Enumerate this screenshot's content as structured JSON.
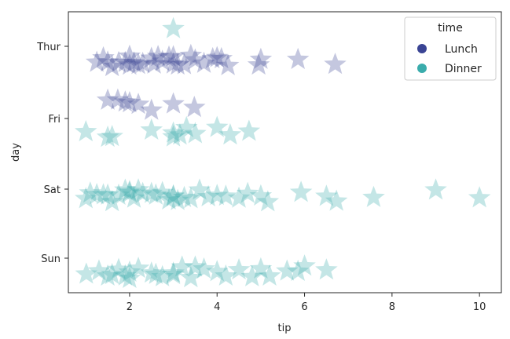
{
  "chart_data": {
    "type": "scatter",
    "xlabel": "tip",
    "ylabel": "day",
    "xlim": [
      0.6,
      10.5
    ],
    "x_ticks": [
      2,
      4,
      6,
      8,
      10
    ],
    "categories": [
      "Thur",
      "Fri",
      "Sat",
      "Sun"
    ],
    "marker": "star",
    "legend": {
      "title": "time",
      "position": "top-right",
      "entries": [
        "Lunch",
        "Dinner"
      ]
    },
    "colors": {
      "Lunch": "#3a4494",
      "Dinner": "#3aacac"
    },
    "series": [
      {
        "name": "Lunch",
        "points": [
          {
            "day": "Thur",
            "x": 1.25,
            "j": 0.2
          },
          {
            "day": "Thur",
            "x": 1.4,
            "j": 0.2
          },
          {
            "day": "Thur",
            "x": 1.5,
            "j": 0.2
          },
          {
            "day": "Thur",
            "x": 1.6,
            "j": 0.2
          },
          {
            "day": "Thur",
            "x": 1.75,
            "j": 0.2
          },
          {
            "day": "Thur",
            "x": 1.9,
            "j": 0.2
          },
          {
            "day": "Thur",
            "x": 2.0,
            "j": 0.2
          },
          {
            "day": "Thur",
            "x": 2.0,
            "j": 0.2
          },
          {
            "day": "Thur",
            "x": 2.1,
            "j": 0.2
          },
          {
            "day": "Thur",
            "x": 2.2,
            "j": 0.2
          },
          {
            "day": "Thur",
            "x": 2.3,
            "j": 0.2
          },
          {
            "day": "Thur",
            "x": 2.5,
            "j": 0.2
          },
          {
            "day": "Thur",
            "x": 2.56,
            "j": 0.2
          },
          {
            "day": "Thur",
            "x": 2.65,
            "j": 0.2
          },
          {
            "day": "Thur",
            "x": 2.75,
            "j": 0.2
          },
          {
            "day": "Thur",
            "x": 2.9,
            "j": 0.2
          },
          {
            "day": "Thur",
            "x": 3.0,
            "j": 0.2
          },
          {
            "day": "Thur",
            "x": 3.0,
            "j": 0.2
          },
          {
            "day": "Thur",
            "x": 3.1,
            "j": 0.2
          },
          {
            "day": "Thur",
            "x": 3.25,
            "j": 0.2
          },
          {
            "day": "Thur",
            "x": 3.4,
            "j": 0.2
          },
          {
            "day": "Thur",
            "x": 3.5,
            "j": 0.2
          },
          {
            "day": "Thur",
            "x": 3.7,
            "j": 0.2
          },
          {
            "day": "Thur",
            "x": 3.9,
            "j": 0.2
          },
          {
            "day": "Thur",
            "x": 4.0,
            "j": 0.2
          },
          {
            "day": "Thur",
            "x": 4.1,
            "j": 0.2
          },
          {
            "day": "Thur",
            "x": 4.25,
            "j": 0.2
          },
          {
            "day": "Thur",
            "x": 4.95,
            "j": 0.2
          },
          {
            "day": "Thur",
            "x": 5.0,
            "j": 0.2
          },
          {
            "day": "Thur",
            "x": 5.85,
            "j": 0.2
          },
          {
            "day": "Thur",
            "x": 6.7,
            "j": 0.2
          },
          {
            "day": "Fri",
            "x": 1.5,
            "j": -0.2
          },
          {
            "day": "Fri",
            "x": 1.73,
            "j": -0.2
          },
          {
            "day": "Fri",
            "x": 1.9,
            "j": -0.2
          },
          {
            "day": "Fri",
            "x": 2.0,
            "j": -0.2
          },
          {
            "day": "Fri",
            "x": 2.2,
            "j": -0.2
          },
          {
            "day": "Fri",
            "x": 2.5,
            "j": -0.2
          },
          {
            "day": "Fri",
            "x": 3.0,
            "j": -0.2
          },
          {
            "day": "Fri",
            "x": 3.48,
            "j": -0.2
          }
        ]
      },
      {
        "name": "Dinner",
        "points": [
          {
            "day": "Thur",
            "x": 3.0,
            "j": -0.2
          },
          {
            "day": "Fri",
            "x": 1.0,
            "j": 0.2
          },
          {
            "day": "Fri",
            "x": 1.5,
            "j": 0.2
          },
          {
            "day": "Fri",
            "x": 1.6,
            "j": 0.2
          },
          {
            "day": "Fri",
            "x": 2.5,
            "j": 0.2
          },
          {
            "day": "Fri",
            "x": 3.0,
            "j": 0.2
          },
          {
            "day": "Fri",
            "x": 3.0,
            "j": 0.2
          },
          {
            "day": "Fri",
            "x": 3.15,
            "j": 0.2
          },
          {
            "day": "Fri",
            "x": 3.3,
            "j": 0.2
          },
          {
            "day": "Fri",
            "x": 3.5,
            "j": 0.2
          },
          {
            "day": "Fri",
            "x": 4.0,
            "j": 0.2
          },
          {
            "day": "Fri",
            "x": 4.3,
            "j": 0.2
          },
          {
            "day": "Fri",
            "x": 4.73,
            "j": 0.2
          },
          {
            "day": "Sat",
            "x": 1.0,
            "j": 0.1
          },
          {
            "day": "Sat",
            "x": 1.1,
            "j": 0.1
          },
          {
            "day": "Sat",
            "x": 1.25,
            "j": 0.1
          },
          {
            "day": "Sat",
            "x": 1.4,
            "j": 0.1
          },
          {
            "day": "Sat",
            "x": 1.5,
            "j": 0.1
          },
          {
            "day": "Sat",
            "x": 1.6,
            "j": 0.1
          },
          {
            "day": "Sat",
            "x": 1.75,
            "j": 0.1
          },
          {
            "day": "Sat",
            "x": 1.9,
            "j": 0.1
          },
          {
            "day": "Sat",
            "x": 2.0,
            "j": 0.1
          },
          {
            "day": "Sat",
            "x": 2.0,
            "j": 0.1
          },
          {
            "day": "Sat",
            "x": 2.1,
            "j": 0.1
          },
          {
            "day": "Sat",
            "x": 2.2,
            "j": 0.1
          },
          {
            "day": "Sat",
            "x": 2.3,
            "j": 0.1
          },
          {
            "day": "Sat",
            "x": 2.5,
            "j": 0.1
          },
          {
            "day": "Sat",
            "x": 2.6,
            "j": 0.1
          },
          {
            "day": "Sat",
            "x": 2.75,
            "j": 0.1
          },
          {
            "day": "Sat",
            "x": 2.9,
            "j": 0.1
          },
          {
            "day": "Sat",
            "x": 3.0,
            "j": 0.1
          },
          {
            "day": "Sat",
            "x": 3.0,
            "j": 0.1
          },
          {
            "day": "Sat",
            "x": 3.1,
            "j": 0.1
          },
          {
            "day": "Sat",
            "x": 3.25,
            "j": 0.1
          },
          {
            "day": "Sat",
            "x": 3.4,
            "j": 0.1
          },
          {
            "day": "Sat",
            "x": 3.6,
            "j": 0.1
          },
          {
            "day": "Sat",
            "x": 3.8,
            "j": 0.1
          },
          {
            "day": "Sat",
            "x": 4.0,
            "j": 0.1
          },
          {
            "day": "Sat",
            "x": 4.2,
            "j": 0.1
          },
          {
            "day": "Sat",
            "x": 4.5,
            "j": 0.1
          },
          {
            "day": "Sat",
            "x": 4.7,
            "j": 0.1
          },
          {
            "day": "Sat",
            "x": 5.0,
            "j": 0.1
          },
          {
            "day": "Sat",
            "x": 5.16,
            "j": 0.1
          },
          {
            "day": "Sat",
            "x": 5.92,
            "j": 0.1
          },
          {
            "day": "Sat",
            "x": 6.5,
            "j": 0.1
          },
          {
            "day": "Sat",
            "x": 6.73,
            "j": 0.1
          },
          {
            "day": "Sat",
            "x": 7.58,
            "j": 0.1
          },
          {
            "day": "Sat",
            "x": 9.0,
            "j": 0.1
          },
          {
            "day": "Sat",
            "x": 10.0,
            "j": 0.1
          },
          {
            "day": "Sun",
            "x": 1.01,
            "j": 0.2
          },
          {
            "day": "Sun",
            "x": 1.3,
            "j": 0.2
          },
          {
            "day": "Sun",
            "x": 1.5,
            "j": 0.2
          },
          {
            "day": "Sun",
            "x": 1.6,
            "j": 0.2
          },
          {
            "day": "Sun",
            "x": 1.75,
            "j": 0.2
          },
          {
            "day": "Sun",
            "x": 1.9,
            "j": 0.2
          },
          {
            "day": "Sun",
            "x": 2.0,
            "j": 0.2
          },
          {
            "day": "Sun",
            "x": 2.0,
            "j": 0.2
          },
          {
            "day": "Sun",
            "x": 2.2,
            "j": 0.2
          },
          {
            "day": "Sun",
            "x": 2.5,
            "j": 0.2
          },
          {
            "day": "Sun",
            "x": 2.6,
            "j": 0.2
          },
          {
            "day": "Sun",
            "x": 2.75,
            "j": 0.2
          },
          {
            "day": "Sun",
            "x": 3.0,
            "j": 0.2
          },
          {
            "day": "Sun",
            "x": 3.0,
            "j": 0.2
          },
          {
            "day": "Sun",
            "x": 3.2,
            "j": 0.2
          },
          {
            "day": "Sun",
            "x": 3.4,
            "j": 0.2
          },
          {
            "day": "Sun",
            "x": 3.5,
            "j": 0.2
          },
          {
            "day": "Sun",
            "x": 3.7,
            "j": 0.2
          },
          {
            "day": "Sun",
            "x": 4.0,
            "j": 0.2
          },
          {
            "day": "Sun",
            "x": 4.2,
            "j": 0.2
          },
          {
            "day": "Sun",
            "x": 4.5,
            "j": 0.2
          },
          {
            "day": "Sun",
            "x": 4.8,
            "j": 0.2
          },
          {
            "day": "Sun",
            "x": 5.0,
            "j": 0.2
          },
          {
            "day": "Sun",
            "x": 5.2,
            "j": 0.2
          },
          {
            "day": "Sun",
            "x": 5.6,
            "j": 0.2
          },
          {
            "day": "Sun",
            "x": 5.85,
            "j": 0.2
          },
          {
            "day": "Sun",
            "x": 6.0,
            "j": 0.2
          },
          {
            "day": "Sun",
            "x": 6.5,
            "j": 0.2
          }
        ]
      }
    ]
  }
}
